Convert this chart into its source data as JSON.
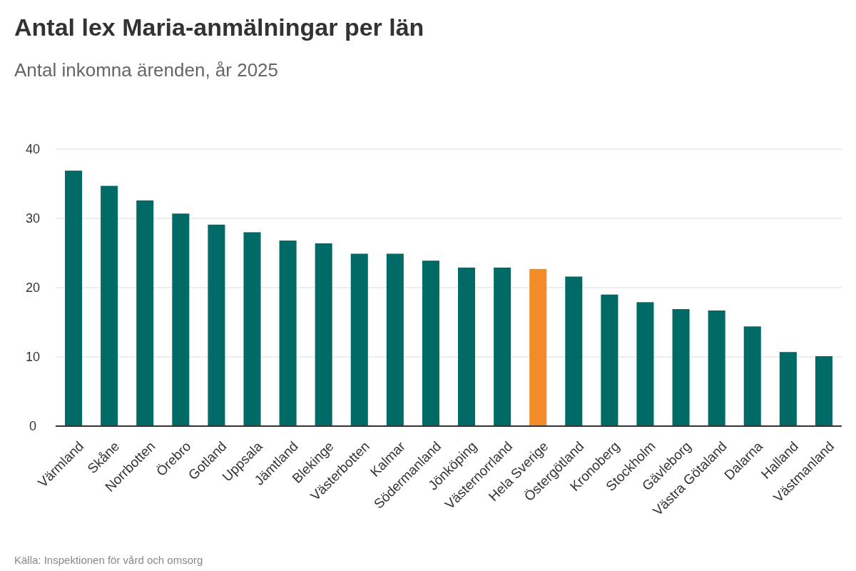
{
  "chart_data": {
    "type": "bar",
    "title": "Antal lex Maria-anmälningar per län",
    "subtitle": "Antal inkomna ärenden, år 2025",
    "categories": [
      "Värmland",
      "Skåne",
      "Norrbotten",
      "Örebro",
      "Gotland",
      "Uppsala",
      "Jämtland",
      "Blekinge",
      "Västerbotten",
      "Kalmar",
      "Södermanland",
      "Jönköping",
      "Västernorrland",
      "Hela Sverige",
      "Östergötland",
      "Kronoberg",
      "Stockholm",
      "Gävleborg",
      "Västra Götaland",
      "Dalarna",
      "Halland",
      "Västmanland"
    ],
    "values": [
      36.9,
      34.7,
      32.6,
      30.7,
      29.1,
      28.0,
      26.8,
      26.4,
      24.9,
      24.9,
      23.9,
      22.9,
      22.9,
      22.7,
      21.6,
      19.0,
      17.9,
      16.9,
      16.7,
      14.4,
      10.7,
      10.1
    ],
    "colors": [
      "#006b66",
      "#006b66",
      "#006b66",
      "#006b66",
      "#006b66",
      "#006b66",
      "#006b66",
      "#006b66",
      "#006b66",
      "#006b66",
      "#006b66",
      "#006b66",
      "#006b66",
      "#f28c28",
      "#006b66",
      "#006b66",
      "#006b66",
      "#006b66",
      "#006b66",
      "#006b66",
      "#006b66",
      "#006b66"
    ],
    "ylim": [
      0,
      40
    ],
    "yticks": [
      0,
      10,
      20,
      30,
      40
    ],
    "grid": "y",
    "annotations": [
      "Källa: Inspektionen för vård och omsorg"
    ]
  }
}
